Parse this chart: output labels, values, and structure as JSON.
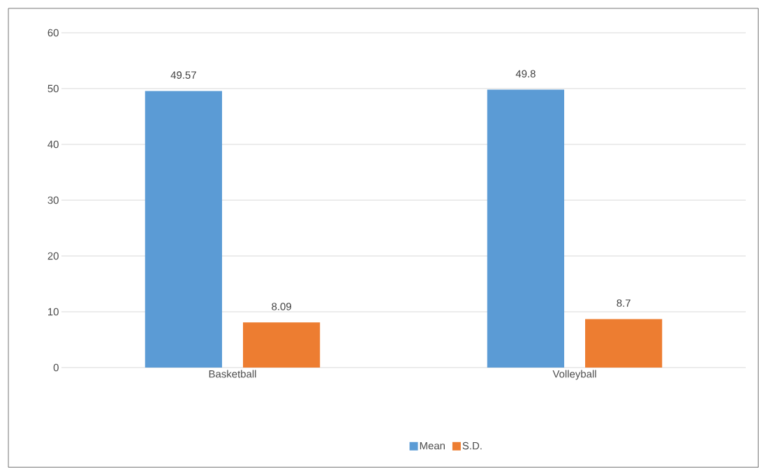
{
  "chart_data": {
    "type": "bar",
    "categories": [
      "Basketball",
      "Volleyball"
    ],
    "series": [
      {
        "name": "Mean",
        "color": "#5b9bd5",
        "values": [
          49.57,
          49.8
        ]
      },
      {
        "name": "S.D.",
        "color": "#ed7d31",
        "values": [
          8.09,
          8.7
        ]
      }
    ],
    "ylim": [
      0,
      60
    ],
    "yticks": [
      0,
      10,
      20,
      30,
      40,
      50,
      60
    ],
    "grid": "y",
    "legend": "bottom",
    "data_labels": true
  }
}
